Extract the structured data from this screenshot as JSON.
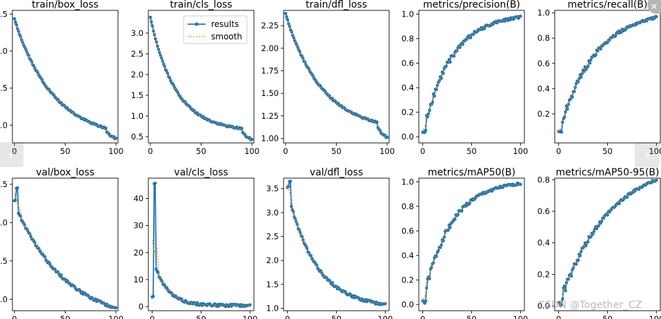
{
  "figure": {
    "legend": {
      "results_label": "results",
      "smooth_label": "smooth",
      "placement": "top-right of train/cls_loss"
    },
    "watermark": "CSDN @Together_CZ",
    "colors": {
      "results": "#1f77b4",
      "smooth": "#ff7f0e",
      "axis": "#000000"
    }
  },
  "nav": {
    "prev_icon": "chevron-left-icon",
    "next_icon": "chevron-right-icon",
    "close_icon": "close-icon",
    "prev_glyph": "‹",
    "next_glyph": "›",
    "close_glyph": "✕"
  },
  "chart_data": [
    {
      "id": "train-box-loss",
      "title": "train/box_loss",
      "type": "line",
      "xlim": [
        -2,
        102
      ],
      "ylim": [
        0.76,
        2.55
      ],
      "xticks": [
        0,
        50,
        100
      ],
      "yticks": [
        1.0,
        1.5,
        2.0,
        2.5
      ],
      "ytick_labels": [
        "1.0",
        "1.5",
        "2.0",
        "2.5"
      ],
      "curve": "decay_drop",
      "y_start": 2.43,
      "y_end": 0.82,
      "decay_rate": 2.6,
      "drop_at": 90,
      "y_before_drop": 0.96,
      "legend": false
    },
    {
      "id": "train-cls-loss",
      "title": "train/cls_loss",
      "type": "line",
      "xlim": [
        -2,
        102
      ],
      "ylim": [
        0.35,
        3.55
      ],
      "xticks": [
        0,
        50,
        100
      ],
      "yticks": [
        0.5,
        1.0,
        1.5,
        2.0,
        2.5,
        3.0
      ],
      "ytick_labels": [
        "0.5",
        "1.0",
        "1.5",
        "2.0",
        "2.5",
        "3.0"
      ],
      "curve": "decay_drop",
      "y_start": 3.37,
      "y_end": 0.43,
      "decay_rate": 4.0,
      "drop_at": 90,
      "y_before_drop": 0.7,
      "legend": true
    },
    {
      "id": "train-dfl-loss",
      "title": "train/dfl_loss",
      "type": "line",
      "xlim": [
        -2,
        102
      ],
      "ylim": [
        0.95,
        2.42
      ],
      "xticks": [
        0,
        50,
        100
      ],
      "yticks": [
        1.0,
        1.25,
        1.5,
        1.75,
        2.0,
        2.25
      ],
      "ytick_labels": [
        "1.00",
        "1.25",
        "1.50",
        "1.75",
        "2.00",
        "2.25"
      ],
      "curve": "decay_drop",
      "y_start": 2.38,
      "y_end": 1.01,
      "decay_rate": 2.8,
      "drop_at": 90,
      "y_before_drop": 1.18,
      "legend": false
    },
    {
      "id": "metrics-precision",
      "title": "metrics/precision(B)",
      "type": "line",
      "xlim": [
        -4,
        104
      ],
      "ylim": [
        -0.05,
        1.03
      ],
      "xticks": [
        0,
        50,
        100
      ],
      "yticks": [
        0.0,
        0.2,
        0.4,
        0.6,
        0.8,
        1.0
      ],
      "ytick_labels": [
        "0.0",
        "0.2",
        "0.4",
        "0.6",
        "0.8",
        "1.0"
      ],
      "curve": "rise",
      "y_start": 0.02,
      "y_end": 0.975,
      "rise_rate": 3.4,
      "legend": false
    },
    {
      "id": "metrics-recall",
      "title": "metrics/recall(B)",
      "type": "line",
      "xlim": [
        -4,
        104
      ],
      "ylim": [
        -0.03,
        1.02
      ],
      "xticks": [
        0,
        50,
        100
      ],
      "yticks": [
        0.2,
        0.4,
        0.6,
        0.8,
        1.0
      ],
      "ytick_labels": [
        "0.2",
        "0.4",
        "0.6",
        "0.8",
        "1.0"
      ],
      "curve": "rise",
      "y_start": 0.05,
      "y_end": 0.965,
      "rise_rate": 2.7,
      "legend": false
    },
    {
      "id": "val-box-loss",
      "title": "val/box_loss",
      "type": "line",
      "xlim": [
        -2,
        102
      ],
      "ylim": [
        0.85,
        2.58
      ],
      "xticks": [
        0,
        50,
        100
      ],
      "yticks": [
        1.0,
        1.5,
        2.0,
        2.5
      ],
      "ytick_labels": [
        "1.0",
        "1.5",
        "2.0",
        "2.5"
      ],
      "curve": "spike_decay",
      "y_start": 2.3,
      "y_peak": 2.45,
      "y_end": 0.88,
      "decay_rate": 1.9,
      "legend": false
    },
    {
      "id": "val-cls-loss",
      "title": "val/cls_loss",
      "type": "line",
      "xlim": [
        -4,
        104
      ],
      "ylim": [
        -1.5,
        47.5
      ],
      "xticks": [
        0,
        50,
        100
      ],
      "yticks": [
        0,
        10,
        20,
        30,
        40
      ],
      "ytick_labels": [
        "0",
        "10",
        "20",
        "30",
        "40"
      ],
      "curve": "spike_decay",
      "y_start": 4.0,
      "y_peak": 45.5,
      "y_end": 0.4,
      "decay_rate": 7.0,
      "legend": false
    },
    {
      "id": "val-dfl-loss",
      "title": "val/dfl_loss",
      "type": "line",
      "xlim": [
        -4,
        104
      ],
      "ylim": [
        0.95,
        3.72
      ],
      "xticks": [
        0,
        50,
        100
      ],
      "yticks": [
        1.0,
        1.5,
        2.0,
        2.5,
        3.0,
        3.5
      ],
      "ytick_labels": [
        "1.0",
        "1.5",
        "2.0",
        "2.5",
        "3.0",
        "3.5"
      ],
      "curve": "spike_decay",
      "y_start": 3.55,
      "y_peak": 3.65,
      "y_end": 1.08,
      "decay_rate": 3.3,
      "legend": false
    },
    {
      "id": "metrics-map50",
      "title": "metrics/mAP50(B)",
      "type": "line",
      "xlim": [
        -4,
        104
      ],
      "ylim": [
        -0.05,
        1.03
      ],
      "xticks": [
        0,
        50,
        100
      ],
      "yticks": [
        0.0,
        0.2,
        0.4,
        0.6,
        0.8,
        1.0
      ],
      "ytick_labels": [
        "0.0",
        "0.2",
        "0.4",
        "0.6",
        "0.8",
        "1.0"
      ],
      "curve": "rise",
      "y_start": 0.01,
      "y_end": 0.985,
      "rise_rate": 3.6,
      "legend": false
    },
    {
      "id": "metrics-map50-95",
      "title": "metrics/mAP50-95(B)",
      "type": "line",
      "xlim": [
        -4,
        104
      ],
      "ylim": [
        -0.03,
        0.81
      ],
      "xticks": [
        0,
        50,
        100
      ],
      "yticks": [
        0.0,
        0.2,
        0.4,
        0.6,
        0.8
      ],
      "ytick_labels": [
        "0.0",
        "0.2",
        "0.4",
        "0.6",
        "0.8"
      ],
      "curve": "rise",
      "y_start": 0.0,
      "y_end": 0.8,
      "rise_rate": 2.0,
      "legend": false
    }
  ]
}
